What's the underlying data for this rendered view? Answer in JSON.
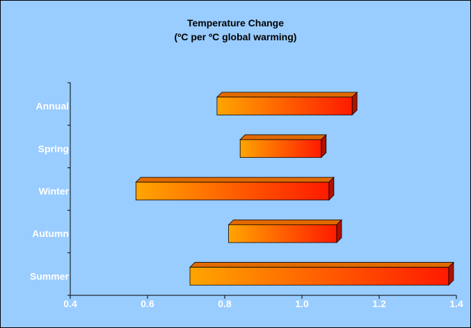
{
  "chart_data": {
    "type": "bar",
    "subtype": "floating-range-horizontal",
    "title": "Temperature Change",
    "subtitle": "(ºC per ºC global warming)",
    "categories": [
      "Annual",
      "Spring",
      "Winter",
      "Autumn",
      "Summer"
    ],
    "ranges": [
      {
        "category": "Annual",
        "low": 0.78,
        "high": 1.13
      },
      {
        "category": "Spring",
        "low": 0.84,
        "high": 1.05
      },
      {
        "category": "Winter",
        "low": 0.57,
        "high": 1.07
      },
      {
        "category": "Autumn",
        "low": 0.81,
        "high": 1.09
      },
      {
        "category": "Summer",
        "low": 0.71,
        "high": 1.38
      }
    ],
    "xlim": [
      0.4,
      1.4
    ],
    "xticks": [
      "0.4",
      "0.6",
      "0.8",
      "1.0",
      "1.2",
      "1.4"
    ],
    "grid": false,
    "colors": {
      "background": "#99ccff",
      "bar_start": "#ffa500",
      "bar_end": "#ff1a00"
    }
  }
}
